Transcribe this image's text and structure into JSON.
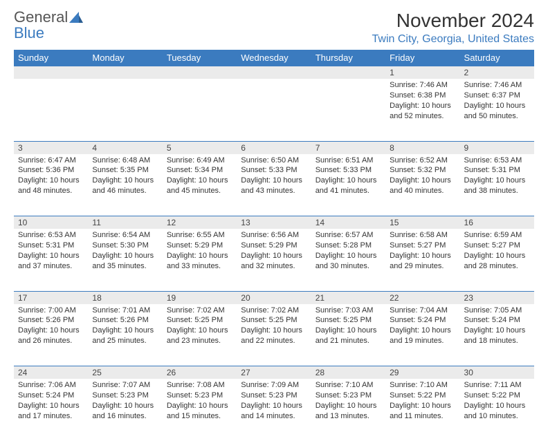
{
  "logo": {
    "line1": "General",
    "line2": "Blue"
  },
  "title": "November 2024",
  "location": "Twin City, Georgia, United States",
  "colors": {
    "header_bg": "#3b7bbf",
    "header_text": "#ffffff",
    "daynum_bg": "#ebebeb",
    "border": "#3b7bbf",
    "body_text": "#333333",
    "logo_gray": "#555555",
    "logo_blue": "#3b7bbf"
  },
  "weekdays": [
    "Sunday",
    "Monday",
    "Tuesday",
    "Wednesday",
    "Thursday",
    "Friday",
    "Saturday"
  ],
  "weeks": [
    [
      null,
      null,
      null,
      null,
      null,
      {
        "n": "1",
        "sunrise": "7:46 AM",
        "sunset": "6:38 PM",
        "d1": "10 hours",
        "d2": "and 52 minutes."
      },
      {
        "n": "2",
        "sunrise": "7:46 AM",
        "sunset": "6:37 PM",
        "d1": "10 hours",
        "d2": "and 50 minutes."
      }
    ],
    [
      {
        "n": "3",
        "sunrise": "6:47 AM",
        "sunset": "5:36 PM",
        "d1": "10 hours",
        "d2": "and 48 minutes."
      },
      {
        "n": "4",
        "sunrise": "6:48 AM",
        "sunset": "5:35 PM",
        "d1": "10 hours",
        "d2": "and 46 minutes."
      },
      {
        "n": "5",
        "sunrise": "6:49 AM",
        "sunset": "5:34 PM",
        "d1": "10 hours",
        "d2": "and 45 minutes."
      },
      {
        "n": "6",
        "sunrise": "6:50 AM",
        "sunset": "5:33 PM",
        "d1": "10 hours",
        "d2": "and 43 minutes."
      },
      {
        "n": "7",
        "sunrise": "6:51 AM",
        "sunset": "5:33 PM",
        "d1": "10 hours",
        "d2": "and 41 minutes."
      },
      {
        "n": "8",
        "sunrise": "6:52 AM",
        "sunset": "5:32 PM",
        "d1": "10 hours",
        "d2": "and 40 minutes."
      },
      {
        "n": "9",
        "sunrise": "6:53 AM",
        "sunset": "5:31 PM",
        "d1": "10 hours",
        "d2": "and 38 minutes."
      }
    ],
    [
      {
        "n": "10",
        "sunrise": "6:53 AM",
        "sunset": "5:31 PM",
        "d1": "10 hours",
        "d2": "and 37 minutes."
      },
      {
        "n": "11",
        "sunrise": "6:54 AM",
        "sunset": "5:30 PM",
        "d1": "10 hours",
        "d2": "and 35 minutes."
      },
      {
        "n": "12",
        "sunrise": "6:55 AM",
        "sunset": "5:29 PM",
        "d1": "10 hours",
        "d2": "and 33 minutes."
      },
      {
        "n": "13",
        "sunrise": "6:56 AM",
        "sunset": "5:29 PM",
        "d1": "10 hours",
        "d2": "and 32 minutes."
      },
      {
        "n": "14",
        "sunrise": "6:57 AM",
        "sunset": "5:28 PM",
        "d1": "10 hours",
        "d2": "and 30 minutes."
      },
      {
        "n": "15",
        "sunrise": "6:58 AM",
        "sunset": "5:27 PM",
        "d1": "10 hours",
        "d2": "and 29 minutes."
      },
      {
        "n": "16",
        "sunrise": "6:59 AM",
        "sunset": "5:27 PM",
        "d1": "10 hours",
        "d2": "and 28 minutes."
      }
    ],
    [
      {
        "n": "17",
        "sunrise": "7:00 AM",
        "sunset": "5:26 PM",
        "d1": "10 hours",
        "d2": "and 26 minutes."
      },
      {
        "n": "18",
        "sunrise": "7:01 AM",
        "sunset": "5:26 PM",
        "d1": "10 hours",
        "d2": "and 25 minutes."
      },
      {
        "n": "19",
        "sunrise": "7:02 AM",
        "sunset": "5:25 PM",
        "d1": "10 hours",
        "d2": "and 23 minutes."
      },
      {
        "n": "20",
        "sunrise": "7:02 AM",
        "sunset": "5:25 PM",
        "d1": "10 hours",
        "d2": "and 22 minutes."
      },
      {
        "n": "21",
        "sunrise": "7:03 AM",
        "sunset": "5:25 PM",
        "d1": "10 hours",
        "d2": "and 21 minutes."
      },
      {
        "n": "22",
        "sunrise": "7:04 AM",
        "sunset": "5:24 PM",
        "d1": "10 hours",
        "d2": "and 19 minutes."
      },
      {
        "n": "23",
        "sunrise": "7:05 AM",
        "sunset": "5:24 PM",
        "d1": "10 hours",
        "d2": "and 18 minutes."
      }
    ],
    [
      {
        "n": "24",
        "sunrise": "7:06 AM",
        "sunset": "5:24 PM",
        "d1": "10 hours",
        "d2": "and 17 minutes."
      },
      {
        "n": "25",
        "sunrise": "7:07 AM",
        "sunset": "5:23 PM",
        "d1": "10 hours",
        "d2": "and 16 minutes."
      },
      {
        "n": "26",
        "sunrise": "7:08 AM",
        "sunset": "5:23 PM",
        "d1": "10 hours",
        "d2": "and 15 minutes."
      },
      {
        "n": "27",
        "sunrise": "7:09 AM",
        "sunset": "5:23 PM",
        "d1": "10 hours",
        "d2": "and 14 minutes."
      },
      {
        "n": "28",
        "sunrise": "7:10 AM",
        "sunset": "5:23 PM",
        "d1": "10 hours",
        "d2": "and 13 minutes."
      },
      {
        "n": "29",
        "sunrise": "7:10 AM",
        "sunset": "5:22 PM",
        "d1": "10 hours",
        "d2": "and 11 minutes."
      },
      {
        "n": "30",
        "sunrise": "7:11 AM",
        "sunset": "5:22 PM",
        "d1": "10 hours",
        "d2": "and 10 minutes."
      }
    ]
  ],
  "labels": {
    "sunrise": "Sunrise:",
    "sunset": "Sunset:",
    "daylight": "Daylight:"
  }
}
